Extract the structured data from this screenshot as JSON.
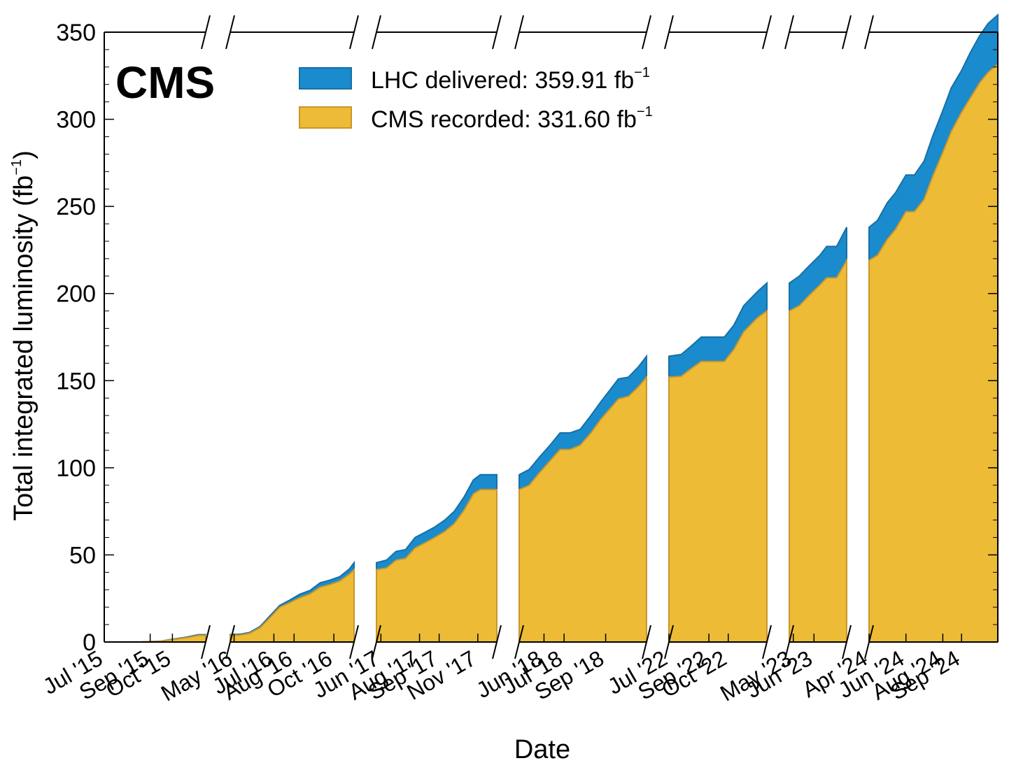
{
  "chart_data": {
    "type": "area",
    "brand": "CMS",
    "xlabel": "Date",
    "ylabel": "Total integrated luminosity (fb",
    "ylabel_sup": "−1",
    "ylabel_end": ")",
    "ylim": [
      0,
      350
    ],
    "yticks": [
      0,
      50,
      100,
      150,
      200,
      250,
      300,
      350
    ],
    "x_axis_broken": true,
    "legend_position": "top-center",
    "series": [
      {
        "name": "LHC delivered: 359.91 fb",
        "name_sup": "−1",
        "color": "#1a8bcc",
        "edge": "#1570a8"
      },
      {
        "name": "CMS recorded: 331.60 fb",
        "name_sup": "−1",
        "color": "#edbb35",
        "edge": "#c9962a"
      }
    ],
    "segments": [
      {
        "x_range": [
          "2015-07-01",
          "2015-11-15"
        ],
        "xticks": [
          {
            "date": "2015-07-01",
            "label": "Jul '15"
          },
          {
            "date": "2015-09-01",
            "label": "Sep '15"
          },
          {
            "date": "2015-10-01",
            "label": "Oct '15"
          }
        ],
        "points": [
          {
            "date": "2015-07-01",
            "delivered": 0,
            "recorded": 0
          },
          {
            "date": "2015-08-20",
            "delivered": 0.1,
            "recorded": 0.1
          },
          {
            "date": "2015-09-15",
            "delivered": 0.5,
            "recorded": 0.4
          },
          {
            "date": "2015-10-01",
            "delivered": 1.6,
            "recorded": 1.4
          },
          {
            "date": "2015-10-20",
            "delivered": 2.8,
            "recorded": 2.5
          },
          {
            "date": "2015-11-05",
            "delivered": 4.2,
            "recorded": 3.8
          },
          {
            "date": "2015-11-15",
            "delivered": 4.2,
            "recorded": 3.8
          }
        ]
      },
      {
        "x_range": [
          "2016-04-25",
          "2016-11-01"
        ],
        "xticks": [
          {
            "date": "2016-05-01",
            "label": "May '16"
          },
          {
            "date": "2016-07-01",
            "label": "Jul '16"
          },
          {
            "date": "2016-08-01",
            "label": "Aug '16"
          },
          {
            "date": "2016-10-01",
            "label": "Oct '16"
          }
        ],
        "points": [
          {
            "date": "2016-04-25",
            "delivered": 4.2,
            "recorded": 3.8
          },
          {
            "date": "2016-05-10",
            "delivered": 4.5,
            "recorded": 4.0
          },
          {
            "date": "2016-05-25",
            "delivered": 5.5,
            "recorded": 5.0
          },
          {
            "date": "2016-06-10",
            "delivered": 9,
            "recorded": 8.3
          },
          {
            "date": "2016-06-25",
            "delivered": 15,
            "recorded": 14
          },
          {
            "date": "2016-07-10",
            "delivered": 21,
            "recorded": 20
          },
          {
            "date": "2016-07-25",
            "delivered": 24,
            "recorded": 22.5
          },
          {
            "date": "2016-08-10",
            "delivered": 27.5,
            "recorded": 25.5
          },
          {
            "date": "2016-08-25",
            "delivered": 29.5,
            "recorded": 27.5
          },
          {
            "date": "2016-09-10",
            "delivered": 34,
            "recorded": 31.5
          },
          {
            "date": "2016-09-25",
            "delivered": 35.5,
            "recorded": 33
          },
          {
            "date": "2016-10-10",
            "delivered": 37.5,
            "recorded": 35
          },
          {
            "date": "2016-10-25",
            "delivered": 42,
            "recorded": 39
          },
          {
            "date": "2016-11-01",
            "delivered": 45.5,
            "recorded": 41.5
          }
        ]
      },
      {
        "x_range": [
          "2017-05-25",
          "2017-12-01"
        ],
        "xticks": [
          {
            "date": "2017-06-01",
            "label": "Jun '17"
          },
          {
            "date": "2017-08-01",
            "label": "Aug '17"
          },
          {
            "date": "2017-09-01",
            "label": "Sep '17"
          },
          {
            "date": "2017-11-01",
            "label": "Nov '17"
          }
        ],
        "points": [
          {
            "date": "2017-05-25",
            "delivered": 45.5,
            "recorded": 41.5
          },
          {
            "date": "2017-06-10",
            "delivered": 47,
            "recorded": 42.5
          },
          {
            "date": "2017-06-25",
            "delivered": 52,
            "recorded": 47
          },
          {
            "date": "2017-07-10",
            "delivered": 53,
            "recorded": 48
          },
          {
            "date": "2017-07-25",
            "delivered": 60,
            "recorded": 54
          },
          {
            "date": "2017-08-10",
            "delivered": 63,
            "recorded": 57
          },
          {
            "date": "2017-08-25",
            "delivered": 66,
            "recorded": 60
          },
          {
            "date": "2017-09-10",
            "delivered": 70,
            "recorded": 63.5
          },
          {
            "date": "2017-09-25",
            "delivered": 75,
            "recorded": 68
          },
          {
            "date": "2017-10-10",
            "delivered": 83,
            "recorded": 75.5
          },
          {
            "date": "2017-10-25",
            "delivered": 93,
            "recorded": 85
          },
          {
            "date": "2017-11-05",
            "delivered": 96,
            "recorded": 87.5
          },
          {
            "date": "2017-12-01",
            "delivered": 96,
            "recorded": 87.5
          }
        ]
      },
      {
        "x_range": [
          "2018-04-25",
          "2018-11-01"
        ],
        "xticks": [
          {
            "date": "2018-06-01",
            "label": "Jun '18"
          },
          {
            "date": "2018-07-01",
            "label": "Jul '18"
          },
          {
            "date": "2018-09-01",
            "label": "Sep '18"
          }
        ],
        "points": [
          {
            "date": "2018-04-25",
            "delivered": 96,
            "recorded": 87.5
          },
          {
            "date": "2018-05-10",
            "delivered": 99,
            "recorded": 90
          },
          {
            "date": "2018-05-25",
            "delivered": 106,
            "recorded": 97
          },
          {
            "date": "2018-06-10",
            "delivered": 113,
            "recorded": 104
          },
          {
            "date": "2018-06-25",
            "delivered": 120,
            "recorded": 110.5
          },
          {
            "date": "2018-07-10",
            "delivered": 120,
            "recorded": 110.5
          },
          {
            "date": "2018-07-25",
            "delivered": 122,
            "recorded": 113
          },
          {
            "date": "2018-08-10",
            "delivered": 130,
            "recorded": 120
          },
          {
            "date": "2018-08-25",
            "delivered": 138,
            "recorded": 128
          },
          {
            "date": "2018-09-10",
            "delivered": 146,
            "recorded": 135
          },
          {
            "date": "2018-09-20",
            "delivered": 151,
            "recorded": 139.5
          },
          {
            "date": "2018-10-05",
            "delivered": 152,
            "recorded": 141
          },
          {
            "date": "2018-10-20",
            "delivered": 158,
            "recorded": 146.5
          },
          {
            "date": "2018-11-01",
            "delivered": 164,
            "recorded": 152
          }
        ]
      },
      {
        "x_range": [
          "2022-07-01",
          "2022-11-30"
        ],
        "xticks": [
          {
            "date": "2022-07-01",
            "label": "Jul '22"
          },
          {
            "date": "2022-09-01",
            "label": "Sep '22"
          },
          {
            "date": "2022-10-01",
            "label": "Oct '22"
          }
        ],
        "points": [
          {
            "date": "2022-07-01",
            "delivered": 164,
            "recorded": 152
          },
          {
            "date": "2022-07-20",
            "delivered": 165,
            "recorded": 152.5
          },
          {
            "date": "2022-08-05",
            "delivered": 170,
            "recorded": 157
          },
          {
            "date": "2022-08-20",
            "delivered": 175,
            "recorded": 161
          },
          {
            "date": "2022-09-10",
            "delivered": 175,
            "recorded": 161
          },
          {
            "date": "2022-09-25",
            "delivered": 175,
            "recorded": 161
          },
          {
            "date": "2022-10-10",
            "delivered": 182,
            "recorded": 168
          },
          {
            "date": "2022-10-25",
            "delivered": 193,
            "recorded": 178
          },
          {
            "date": "2022-11-15",
            "delivered": 201,
            "recorded": 186
          },
          {
            "date": "2022-11-30",
            "delivered": 206,
            "recorded": 190
          }
        ]
      },
      {
        "x_range": [
          "2023-04-25",
          "2023-07-20"
        ],
        "xticks": [
          {
            "date": "2023-05-01",
            "label": "May '23"
          },
          {
            "date": "2023-06-01",
            "label": "Jun '23"
          }
        ],
        "points": [
          {
            "date": "2023-04-25",
            "delivered": 206,
            "recorded": 190
          },
          {
            "date": "2023-05-10",
            "delivered": 210,
            "recorded": 193
          },
          {
            "date": "2023-05-25",
            "delivered": 216,
            "recorded": 199
          },
          {
            "date": "2023-06-10",
            "delivered": 222,
            "recorded": 205
          },
          {
            "date": "2023-06-20",
            "delivered": 227,
            "recorded": 209
          },
          {
            "date": "2023-07-05",
            "delivered": 227,
            "recorded": 209
          },
          {
            "date": "2023-07-20",
            "delivered": 238,
            "recorded": 219
          }
        ]
      },
      {
        "x_range": [
          "2024-04-01",
          "2024-10-31"
        ],
        "xticks": [
          {
            "date": "2024-04-01",
            "label": "Apr '24"
          },
          {
            "date": "2024-06-01",
            "label": "Jun '24"
          },
          {
            "date": "2024-08-01",
            "label": "Aug '24"
          },
          {
            "date": "2024-09-01",
            "label": "Sep '24"
          }
        ],
        "points": [
          {
            "date": "2024-04-01",
            "delivered": 238,
            "recorded": 219
          },
          {
            "date": "2024-04-15",
            "delivered": 242,
            "recorded": 222
          },
          {
            "date": "2024-05-01",
            "delivered": 252,
            "recorded": 231
          },
          {
            "date": "2024-05-15",
            "delivered": 258,
            "recorded": 237
          },
          {
            "date": "2024-06-01",
            "delivered": 268,
            "recorded": 247
          },
          {
            "date": "2024-06-15",
            "delivered": 268,
            "recorded": 247
          },
          {
            "date": "2024-07-01",
            "delivered": 276,
            "recorded": 254
          },
          {
            "date": "2024-07-15",
            "delivered": 290,
            "recorded": 267
          },
          {
            "date": "2024-08-01",
            "delivered": 305,
            "recorded": 281
          },
          {
            "date": "2024-08-15",
            "delivered": 318,
            "recorded": 293
          },
          {
            "date": "2024-09-01",
            "delivered": 328,
            "recorded": 304
          },
          {
            "date": "2024-09-15",
            "delivered": 338,
            "recorded": 312
          },
          {
            "date": "2024-10-01",
            "delivered": 348,
            "recorded": 321
          },
          {
            "date": "2024-10-15",
            "delivered": 355,
            "recorded": 327
          },
          {
            "date": "2024-10-31",
            "delivered": 359.91,
            "recorded": 331.6
          }
        ]
      }
    ]
  }
}
